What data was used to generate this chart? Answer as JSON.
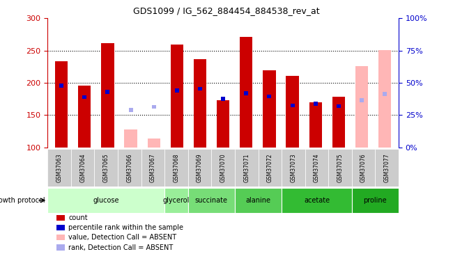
{
  "title": "GDS1099 / IG_562_884454_884538_rev_at",
  "samples": [
    "GSM37063",
    "GSM37064",
    "GSM37065",
    "GSM37066",
    "GSM37067",
    "GSM37068",
    "GSM37069",
    "GSM37070",
    "GSM37071",
    "GSM37072",
    "GSM37073",
    "GSM37074",
    "GSM37075",
    "GSM37076",
    "GSM37077"
  ],
  "count_values": [
    233,
    196,
    262,
    null,
    null,
    259,
    237,
    173,
    271,
    219,
    211,
    170,
    179,
    null,
    null
  ],
  "count_absent": [
    null,
    null,
    null,
    128,
    114,
    null,
    null,
    null,
    null,
    null,
    null,
    null,
    null,
    226,
    251
  ],
  "rank_values": [
    196,
    178,
    186,
    null,
    null,
    188,
    191,
    175,
    184,
    179,
    165,
    168,
    164,
    null,
    null
  ],
  "rank_absent": [
    null,
    null,
    null,
    158,
    163,
    null,
    null,
    null,
    null,
    null,
    null,
    null,
    null,
    173,
    183
  ],
  "ylim": [
    100,
    300
  ],
  "yticks": [
    100,
    150,
    200,
    250,
    300
  ],
  "right_ylim": [
    0,
    100
  ],
  "right_yticks": [
    0,
    25,
    50,
    75,
    100
  ],
  "right_yticklabels": [
    "0%",
    "25%",
    "50%",
    "75%",
    "100%"
  ],
  "bar_width": 0.55,
  "rank_bar_width": 0.18,
  "rank_bar_height": 6,
  "count_color": "#cc0000",
  "count_absent_color": "#ffb6b6",
  "rank_color": "#0000cc",
  "rank_absent_color": "#aaaaee",
  "groups": [
    {
      "label": "glucose",
      "indices": [
        0,
        1,
        2,
        3,
        4
      ],
      "color": "#ccffcc"
    },
    {
      "label": "glycerol",
      "indices": [
        5
      ],
      "color": "#99ee99"
    },
    {
      "label": "succinate",
      "indices": [
        6,
        7
      ],
      "color": "#77dd77"
    },
    {
      "label": "alanine",
      "indices": [
        8,
        9
      ],
      "color": "#55cc55"
    },
    {
      "label": "acetate",
      "indices": [
        10,
        11,
        12
      ],
      "color": "#33bb33"
    },
    {
      "label": "proline",
      "indices": [
        13,
        14
      ],
      "color": "#22aa22"
    }
  ],
  "group_protocol_label": "growth protocol",
  "legend_items": [
    {
      "label": "count",
      "color": "#cc0000"
    },
    {
      "label": "percentile rank within the sample",
      "color": "#0000cc"
    },
    {
      "label": "value, Detection Call = ABSENT",
      "color": "#ffb6b6"
    },
    {
      "label": "rank, Detection Call = ABSENT",
      "color": "#aaaaee"
    }
  ],
  "left_axis_color": "#cc0000",
  "right_axis_color": "#0000cc",
  "grid_color": "#000000",
  "sample_row_color": "#cccccc",
  "bg_color": "#ffffff"
}
